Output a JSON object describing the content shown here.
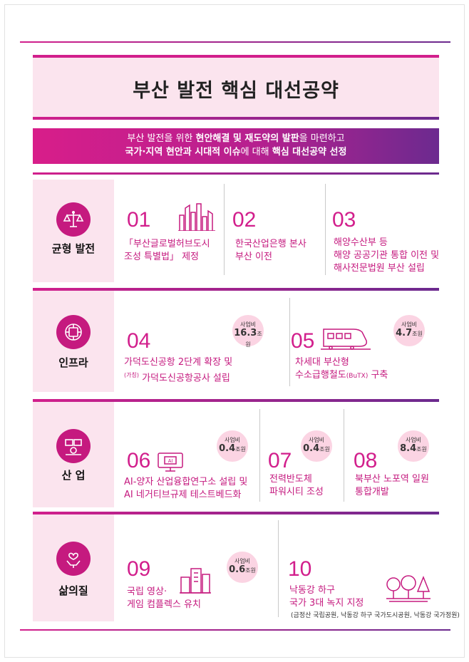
{
  "title": "부산 발전 핵심 대선공약",
  "banner": {
    "line1_a": "부산 발전을 위한 ",
    "line1_b": "현안해결 및 재도약의 발판",
    "line1_c": "을 마련하고",
    "line2_a": "국가·지역 현안과 시대적 이슈",
    "line2_b": "에 대해 ",
    "line2_c": "핵심 대선공약 선정"
  },
  "budget_label": "사업비",
  "budget_unit": "조원",
  "sections": [
    {
      "category": "균형 발전",
      "icon": "scale-icon",
      "items": [
        {
          "num": "01",
          "line1": "「부산글로벌허브도시",
          "line2": "조성 특별법」 제정",
          "icon": "city-skyline-icon"
        },
        {
          "num": "02",
          "line1": "한국산업은행 본사",
          "line2": "부산 이전"
        },
        {
          "num": "03",
          "line1": "해양수산부 등",
          "line2": "해양 공공기관 통합 이전 및",
          "line3": "해사전문법원 부산 설립"
        }
      ]
    },
    {
      "category": "인프라",
      "icon": "infrastructure-icon",
      "items": [
        {
          "num": "04",
          "line1": "가덕도신공항 2단계 확장  및",
          "line2_prefix": "(가칭)",
          "line2": " 가덕도신공항공사 설립",
          "budget": "16.3"
        },
        {
          "num": "05",
          "line1": "차세대 부산형",
          "line2": "수소급행철도",
          "line2_small": "(BuTX)",
          "line2_end": " 구축",
          "budget": "4.7",
          "icon": "train-icon"
        }
      ]
    },
    {
      "category": "산  업",
      "icon": "industry-icon",
      "items": [
        {
          "num": "06",
          "line1": "AI-양자 산업융합연구소 설립 및",
          "line2": "AI 네거티브규제 테스트베드화",
          "budget": "0.4",
          "icon": "ai-monitor-icon",
          "icon_text": "AI"
        },
        {
          "num": "07",
          "line1": "전력반도체",
          "line2": "파워시티 조성",
          "budget": "0.4"
        },
        {
          "num": "08",
          "line1": "북부산 노포역 일원",
          "line2": "통합개발",
          "budget": "8.4"
        }
      ]
    },
    {
      "category": "삶의질",
      "icon": "wellbeing-icon",
      "items": [
        {
          "num": "09",
          "line1": "국립 영상·",
          "line2": "게임 컴플렉스 유치",
          "budget": "0.6",
          "icon": "buildings-icon"
        },
        {
          "num": "10",
          "line1": "낙동강 하구",
          "line2": "국가 3대 녹지  지정",
          "note": "(금정산 국립공원, 낙동강 하구 국가도시공원, 낙동강 국가정원)",
          "icon": "park-trees-icon"
        }
      ]
    }
  ],
  "colors": {
    "accent": "#d21f8c",
    "accent2": "#6b2a8e",
    "pink_bg": "#fbe4ee",
    "text_pink": "#c51a7f"
  }
}
